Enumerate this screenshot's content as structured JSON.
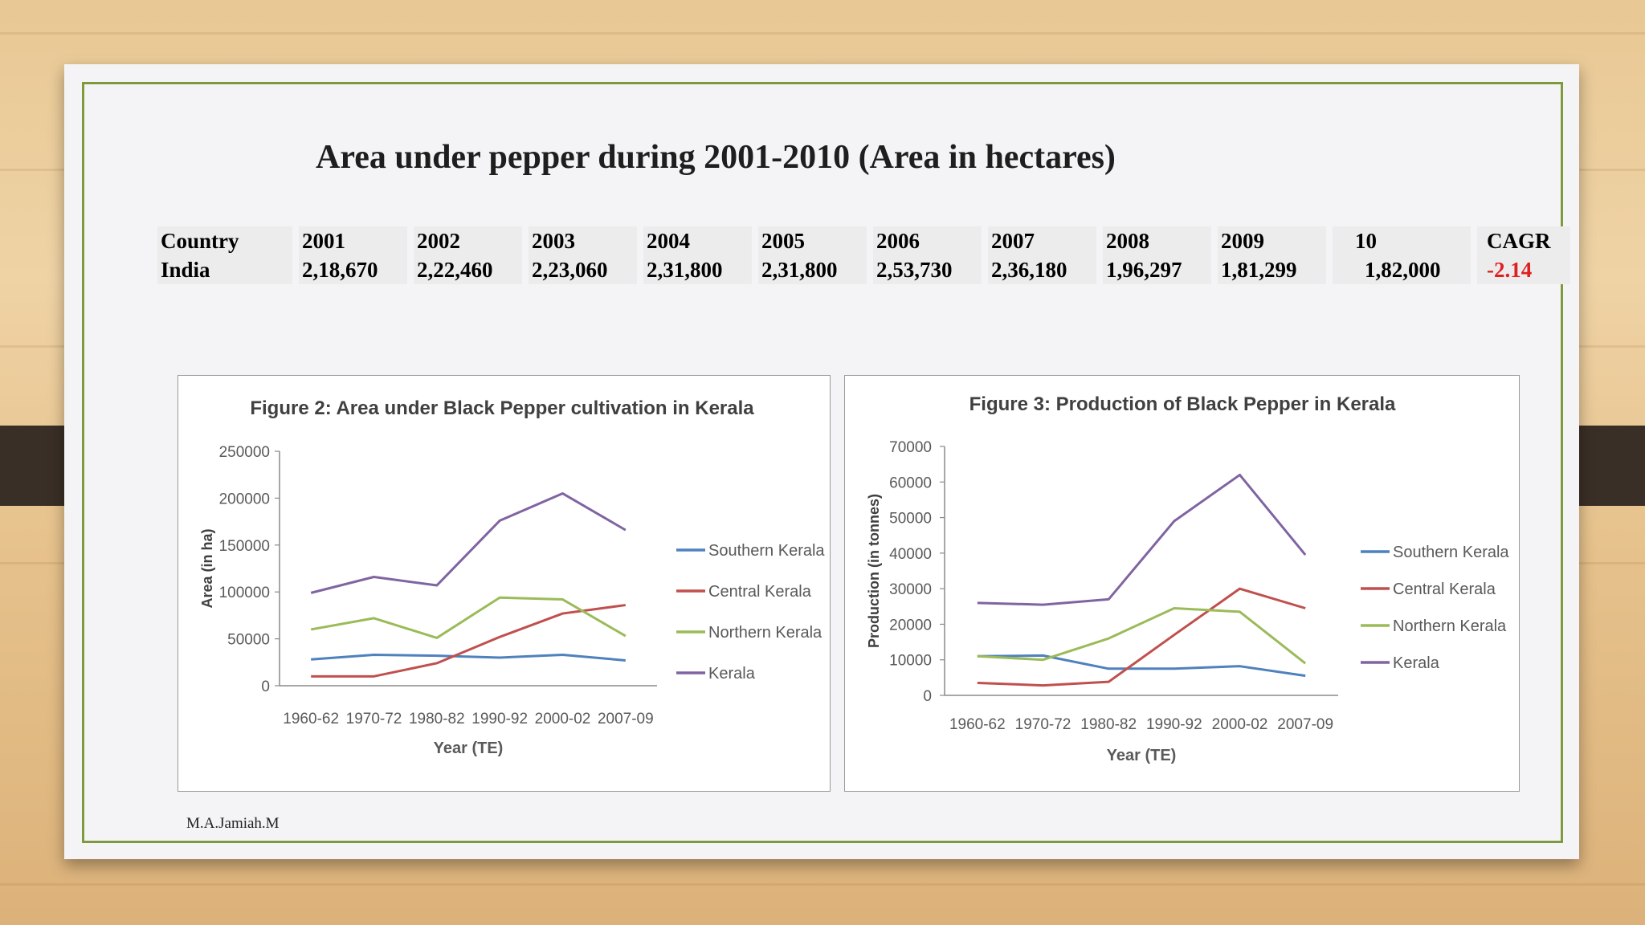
{
  "slide": {
    "title": "Area under pepper during 2001-2010 (Area in hectares)",
    "footer": "M.A.Jamiah.M"
  },
  "table": {
    "header": [
      "Country",
      "2001",
      "2002",
      "2003",
      "2004",
      "2005",
      "2006",
      "2007",
      "2008",
      "2009",
      "10",
      "CAGR"
    ],
    "row": [
      "India",
      "2,18,670",
      "2,22,460",
      "2,23,060",
      "2,31,800",
      "2,31,800",
      "2,53,730",
      "2,36,180",
      "1,96,297",
      "1,81,299",
      "1,82,000",
      "-2.14"
    ]
  },
  "colors": {
    "southern": "#4f81bd",
    "central": "#c0504d",
    "northern": "#9bbb59",
    "kerala": "#8064a2",
    "negative": "#e02020"
  },
  "chart_data": [
    {
      "type": "line",
      "title": "Figure 2: Area under Black Pepper cultivation in Kerala",
      "xlabel": "Year (TE)",
      "ylabel": "Area (in ha)",
      "categories": [
        "1960-62",
        "1970-72",
        "1980-82",
        "1990-92",
        "2000-02",
        "2007-09"
      ],
      "ylim": [
        0,
        250000
      ],
      "yticks": [
        "0",
        "50000",
        "100000",
        "150000",
        "200000",
        "250000"
      ],
      "legend_position": "right",
      "series": [
        {
          "name": "Southern Kerala",
          "values": [
            28000,
            33000,
            32000,
            30000,
            33000,
            27000
          ]
        },
        {
          "name": "Central Kerala",
          "values": [
            10000,
            10000,
            24000,
            52000,
            77000,
            86000
          ]
        },
        {
          "name": "Northern Kerala",
          "values": [
            60000,
            72000,
            51000,
            94000,
            92000,
            53000
          ]
        },
        {
          "name": "Kerala",
          "values": [
            99000,
            116000,
            107000,
            176000,
            205000,
            166000
          ]
        }
      ]
    },
    {
      "type": "line",
      "title": "Figure 3: Production of Black Pepper in Kerala",
      "xlabel": "Year (TE)",
      "ylabel": "Production (in tonnes)",
      "categories": [
        "1960-62",
        "1970-72",
        "1980-82",
        "1990-92",
        "2000-02",
        "2007-09"
      ],
      "ylim": [
        0,
        70000
      ],
      "yticks": [
        "0",
        "10000",
        "20000",
        "30000",
        "40000",
        "50000",
        "60000",
        "70000"
      ],
      "legend_position": "right",
      "series": [
        {
          "name": "Southern Kerala",
          "values": [
            11000,
            11200,
            7500,
            7500,
            8200,
            5500
          ]
        },
        {
          "name": "Central Kerala",
          "values": [
            3500,
            2800,
            3800,
            17000,
            30000,
            24500
          ]
        },
        {
          "name": "Northern Kerala",
          "values": [
            11000,
            10000,
            16000,
            24500,
            23500,
            9000
          ]
        },
        {
          "name": "Kerala",
          "values": [
            26000,
            25500,
            27000,
            49000,
            62000,
            39500
          ]
        }
      ]
    }
  ]
}
